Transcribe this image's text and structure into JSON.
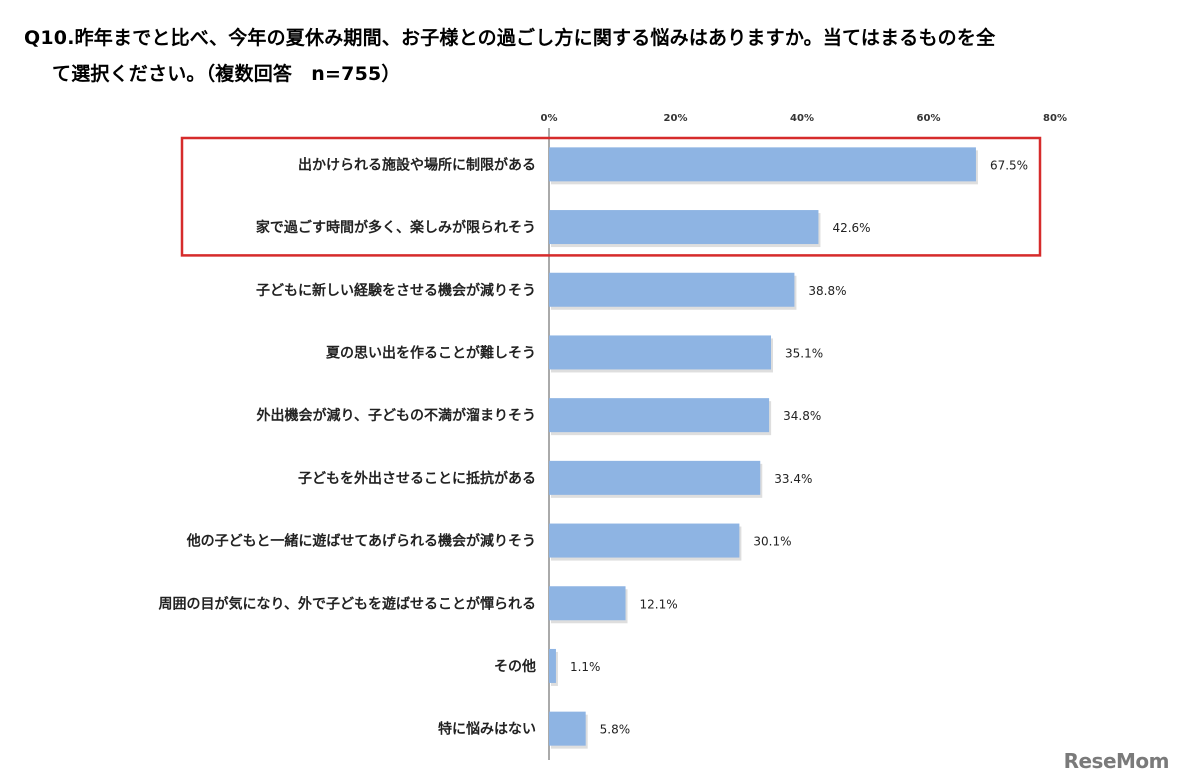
{
  "title": {
    "line1": "Q10.昨年までと比べ、今年の夏休み期間、お子様との過ごし方に関する悩みはありますか。当てはまるものを全",
    "line2": "て選択ください。（複数回答　n=755）"
  },
  "logo": "ReseMom",
  "colors": {
    "bar": "#8eb4e3",
    "highlight_box": "#d62b2b",
    "axis": "#555555"
  },
  "chart_data": {
    "type": "bar",
    "orientation": "horizontal",
    "categories": [
      "出かけられる施設や場所に制限がある",
      "家で過ごす時間が多く、楽しみが限られそう",
      "子どもに新しい経験をさせる機会が減りそう",
      "夏の思い出を作ることが難しそう",
      "外出機会が減り、子どもの不満が溜まりそう",
      "子どもを外出させることに抵抗がある",
      "他の子どもと一緒に遊ばせてあげられる機会が減りそう",
      "周囲の目が気になり、外で子どもを遊ばせることが憚られる",
      "その他",
      "特に悩みはない"
    ],
    "values": [
      67.5,
      42.6,
      38.8,
      35.1,
      34.8,
      33.4,
      30.1,
      12.1,
      1.1,
      5.8
    ],
    "value_labels": [
      "67.5%",
      "42.6%",
      "38.8%",
      "35.1%",
      "34.8%",
      "33.4%",
      "30.1%",
      "12.1%",
      "1.1%",
      "5.8%"
    ],
    "xticks": [
      "0%",
      "20%",
      "40%",
      "60%",
      "80%"
    ],
    "xlim": [
      0,
      80
    ],
    "axis_position": "top",
    "highlighted_categories": [
      0,
      1
    ],
    "grid": false
  }
}
